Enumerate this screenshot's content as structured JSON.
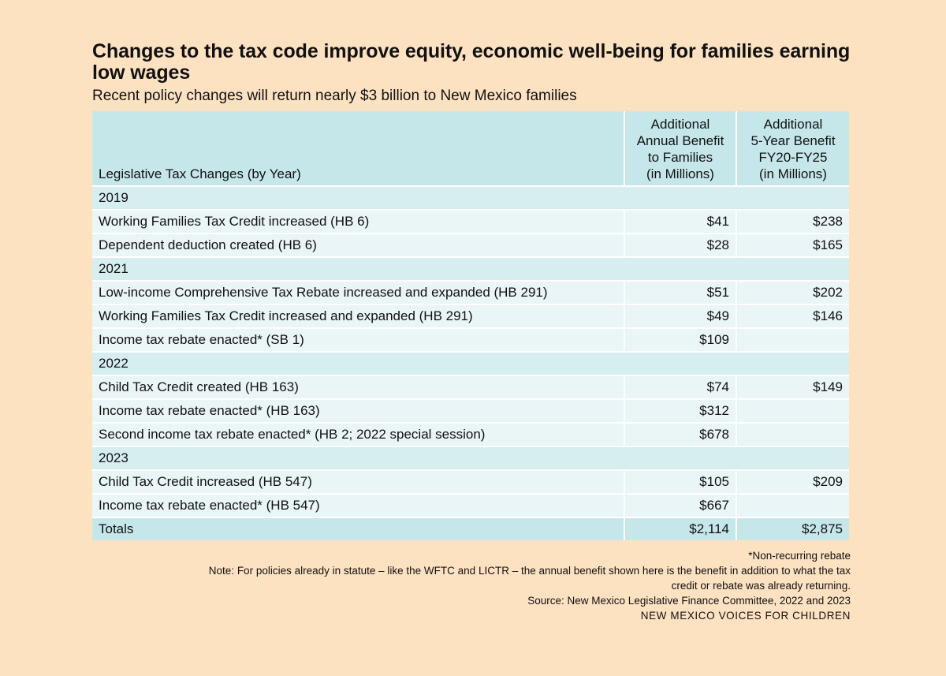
{
  "title": "Changes to the tax code improve equity, economic well-being for families earning low wages",
  "subtitle": "Recent policy changes will return nearly $3 billion to New Mexico families",
  "table": {
    "headers": {
      "col1": "Legislative Tax Changes (by Year)",
      "col2": [
        "Additional",
        "Annual Benefit",
        "to Families",
        "(in Millions)"
      ],
      "col3": [
        "Additional",
        "5-Year Benefit",
        "FY20-FY25",
        "(in Millions)"
      ]
    },
    "years": [
      {
        "year": "2019",
        "rows": [
          {
            "label": "Working Families Tax Credit increased (HB 6)",
            "annual": "$41",
            "five_year": "$238"
          },
          {
            "label": "Dependent deduction created (HB 6)",
            "annual": "$28",
            "five_year": "$165"
          }
        ]
      },
      {
        "year": "2021",
        "rows": [
          {
            "label": "Low-income Comprehensive Tax Rebate increased and expanded (HB 291)",
            "annual": "$51",
            "five_year": "$202"
          },
          {
            "label": "Working Families Tax Credit increased and expanded (HB 291)",
            "annual": "$49",
            "five_year": "$146"
          },
          {
            "label": "Income tax rebate enacted* (SB 1)",
            "annual": "$109",
            "five_year": ""
          }
        ]
      },
      {
        "year": "2022",
        "rows": [
          {
            "label": "Child Tax Credit created (HB 163)",
            "annual": "$74",
            "five_year": "$149"
          },
          {
            "label": "Income tax rebate enacted* (HB 163)",
            "annual": "$312",
            "five_year": ""
          },
          {
            "label": "Second income tax rebate enacted* (HB 2; 2022 special session)",
            "annual": "$678",
            "five_year": ""
          }
        ]
      },
      {
        "year": "2023",
        "rows": [
          {
            "label": "Child Tax Credit increased (HB 547)",
            "annual": "$105",
            "five_year": "$209"
          },
          {
            "label": "Income tax rebate enacted* (HB 547)",
            "annual": "$667",
            "five_year": ""
          }
        ]
      }
    ],
    "totals": {
      "label": "Totals",
      "annual": "$2,114",
      "five_year": "$2,875"
    }
  },
  "notes": {
    "footnote": "*Non-recurring rebate",
    "note_line1": "Note: For policies already in statute – like the WFTC and LICTR – the annual benefit shown here is the benefit in addition to what the tax",
    "note_line2": "credit or rebate was already returning.",
    "source": "Source: New Mexico Legislative Finance Committee, 2022 and 2023",
    "org": "NEW MEXICO VOICES FOR CHILDREN"
  },
  "colors": {
    "background": "#fde2c2",
    "header": "#c6e7ea",
    "year_row": "#d6eef0",
    "item_row": "#e9f5f7"
  }
}
